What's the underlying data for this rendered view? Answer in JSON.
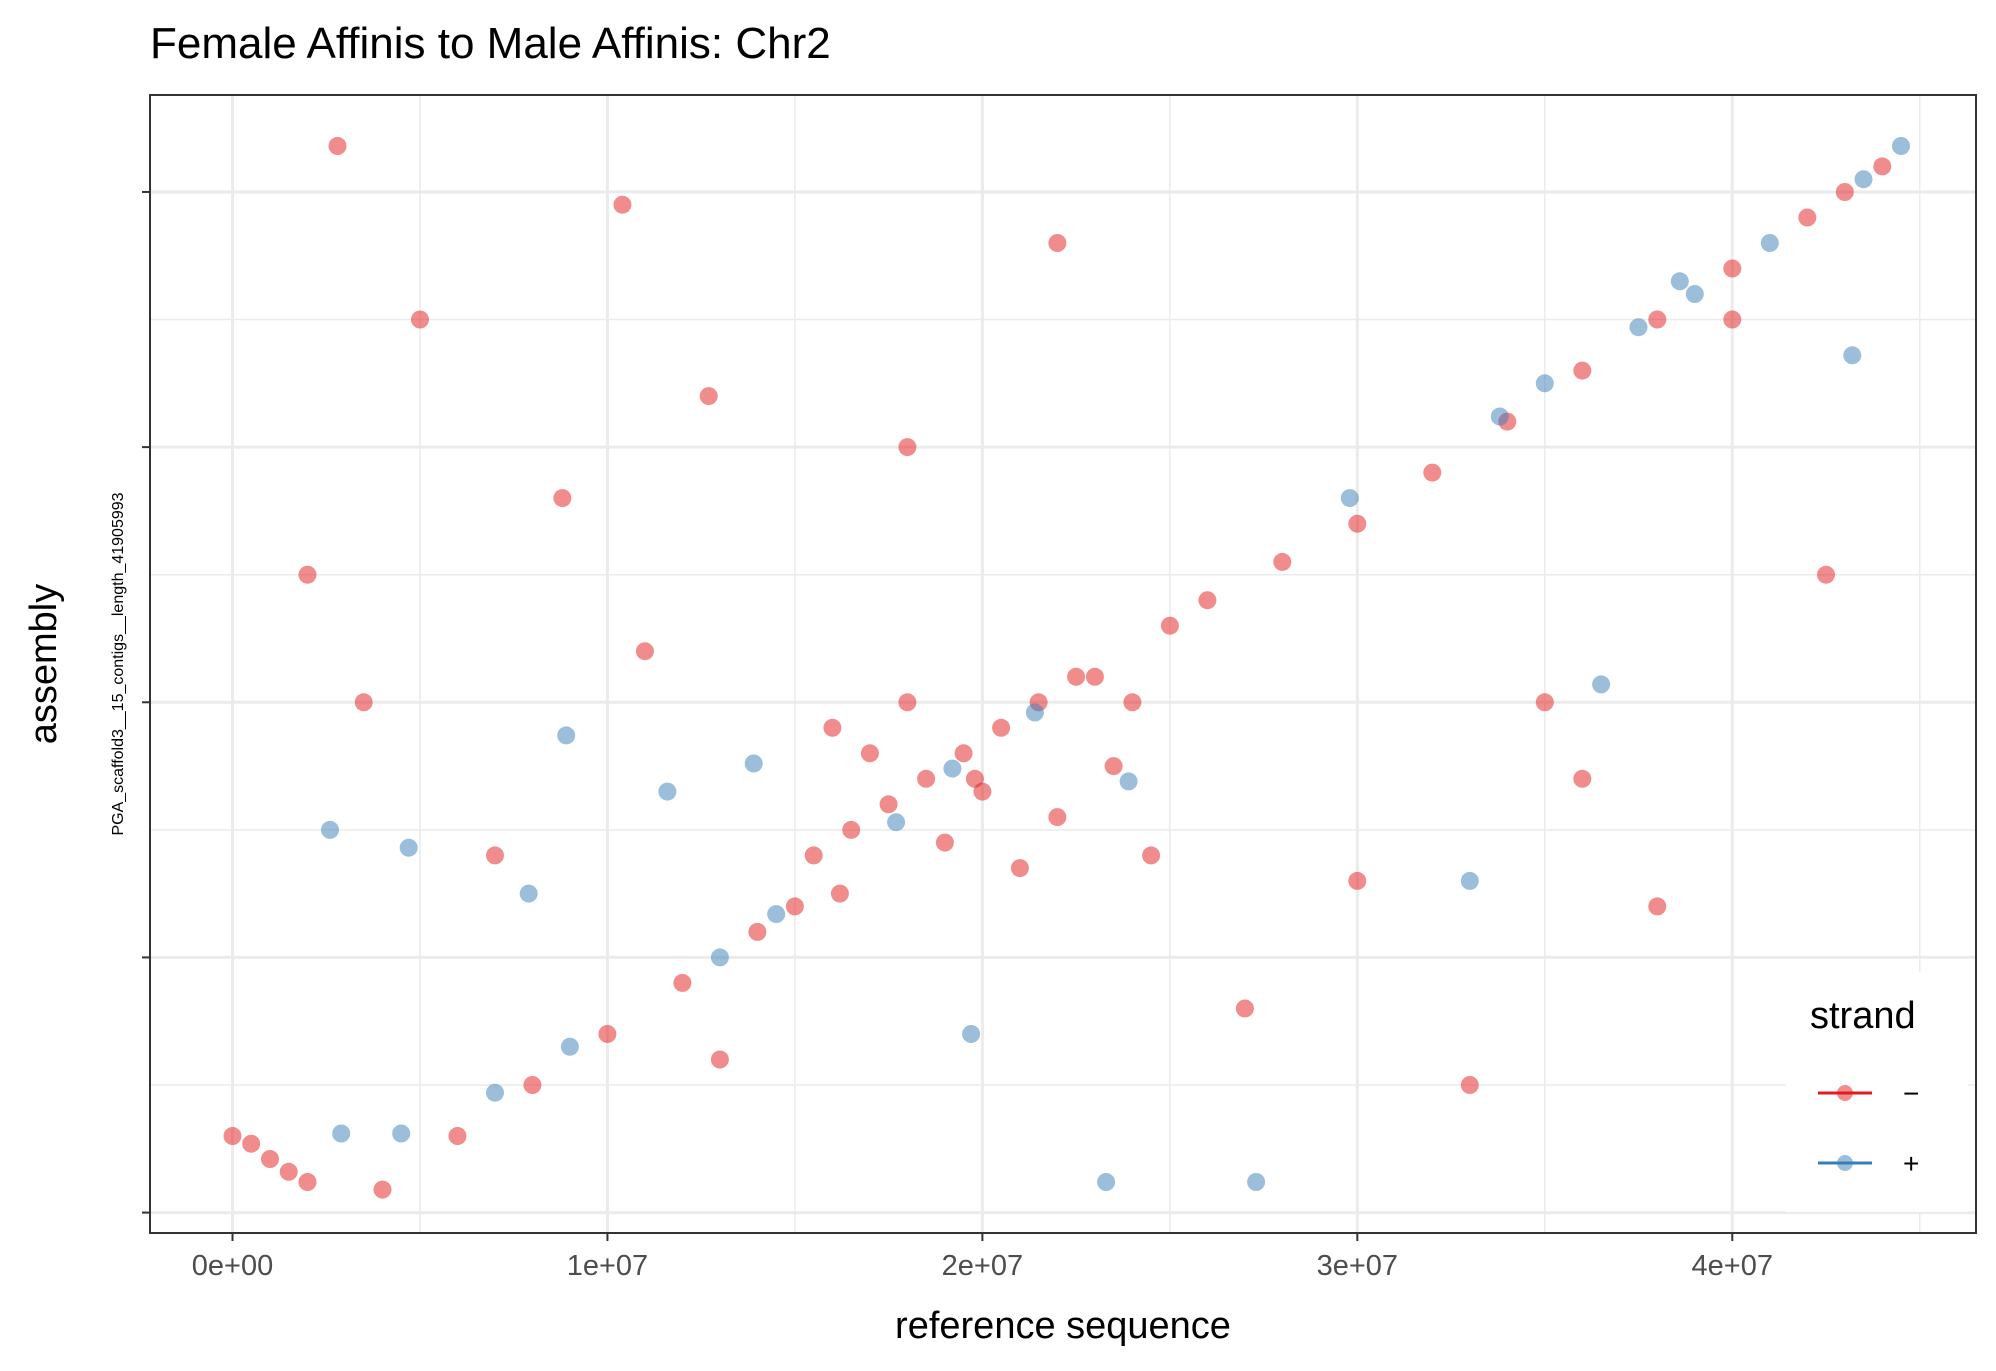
{
  "chart_data": {
    "type": "scatter",
    "title": "Female Affinis to Male Affinis: Chr2",
    "xlabel": "reference sequence",
    "ylabel": "assembly",
    "y_sublabel": "PGA_scaffold3__15_contigs__length_41905993",
    "xlim": [
      -2200000,
      46500000
    ],
    "ylim": [
      -800000,
      43800000
    ],
    "x_ticks": [
      0,
      10000000,
      20000000,
      30000000,
      40000000
    ],
    "x_tick_labels": [
      "0e+00",
      "1e+07",
      "2e+07",
      "3e+07",
      "4e+07"
    ],
    "y_ticks": [
      0,
      10000000,
      20000000,
      30000000,
      40000000
    ],
    "y_tick_labels": [
      "",
      "",
      "",
      "",
      ""
    ],
    "grid": true,
    "legend": {
      "title": "strand",
      "position": "right-bottom",
      "entries": [
        {
          "label": "−",
          "color": "#e41a1c"
        },
        {
          "label": "+",
          "color": "#377eb8"
        }
      ]
    },
    "series": [
      {
        "name": "−",
        "color": "#e41a1c",
        "points": [
          [
            0,
            3000000
          ],
          [
            500000,
            2700000
          ],
          [
            1000000,
            2100000
          ],
          [
            1500000,
            1600000
          ],
          [
            2000000,
            1200000
          ],
          [
            4000000,
            900000
          ],
          [
            6000000,
            3000000
          ],
          [
            8000000,
            5000000
          ],
          [
            10000000,
            7000000
          ],
          [
            12000000,
            9000000
          ],
          [
            14000000,
            11000000
          ],
          [
            15000000,
            12000000
          ],
          [
            23000000,
            21000000
          ],
          [
            25000000,
            23000000
          ],
          [
            26000000,
            24000000
          ],
          [
            28000000,
            25500000
          ],
          [
            30000000,
            27000000
          ],
          [
            32000000,
            29000000
          ],
          [
            34000000,
            31000000
          ],
          [
            36000000,
            33000000
          ],
          [
            38000000,
            35000000
          ],
          [
            40000000,
            37000000
          ],
          [
            42000000,
            39000000
          ],
          [
            43000000,
            40000000
          ],
          [
            44000000,
            41000000
          ],
          [
            15500000,
            14000000
          ],
          [
            16500000,
            15000000
          ],
          [
            17500000,
            16000000
          ],
          [
            18500000,
            17000000
          ],
          [
            19500000,
            18000000
          ],
          [
            20500000,
            19000000
          ],
          [
            21500000,
            20000000
          ],
          [
            22500000,
            21000000
          ],
          [
            16000000,
            19000000
          ],
          [
            17000000,
            18000000
          ],
          [
            18000000,
            20000000
          ],
          [
            19000000,
            14500000
          ],
          [
            20000000,
            16500000
          ],
          [
            21000000,
            13500000
          ],
          [
            22000000,
            15500000
          ],
          [
            23500000,
            17500000
          ],
          [
            24500000,
            14000000
          ],
          [
            16200000,
            12500000
          ],
          [
            24000000,
            20000000
          ],
          [
            19800000,
            17000000
          ],
          [
            2800000,
            41800000
          ],
          [
            10400000,
            39500000
          ],
          [
            12700000,
            32000000
          ],
          [
            8800000,
            28000000
          ],
          [
            35000000,
            20000000
          ],
          [
            38000000,
            12000000
          ],
          [
            42500000,
            25000000
          ],
          [
            2000000,
            25000000
          ],
          [
            30000000,
            13000000
          ],
          [
            11000000,
            22000000
          ],
          [
            27000000,
            8000000
          ],
          [
            33000000,
            5000000
          ],
          [
            5000000,
            35000000
          ],
          [
            40000000,
            35000000
          ],
          [
            22000000,
            38000000
          ],
          [
            18000000,
            30000000
          ],
          [
            7000000,
            14000000
          ],
          [
            13000000,
            6000000
          ],
          [
            36000000,
            17000000
          ],
          [
            3500000,
            20000000
          ]
        ]
      },
      {
        "name": "+",
        "color": "#377eb8",
        "points": [
          [
            2900000,
            3100000
          ],
          [
            4500000,
            3100000
          ],
          [
            7000000,
            4700000
          ],
          [
            9000000,
            6500000
          ],
          [
            13000000,
            10000000
          ],
          [
            14500000,
            11700000
          ],
          [
            29800000,
            28000000
          ],
          [
            33800000,
            31200000
          ],
          [
            35000000,
            32500000
          ],
          [
            37500000,
            34700000
          ],
          [
            39000000,
            36000000
          ],
          [
            41000000,
            38000000
          ],
          [
            43500000,
            40500000
          ],
          [
            44500000,
            41800000
          ],
          [
            2600000,
            15000000
          ],
          [
            4700000,
            14300000
          ],
          [
            7900000,
            12500000
          ],
          [
            8900000,
            18700000
          ],
          [
            11600000,
            16500000
          ],
          [
            13900000,
            17600000
          ],
          [
            19700000,
            7000000
          ],
          [
            23300000,
            1200000
          ],
          [
            27300000,
            1200000
          ],
          [
            33000000,
            13000000
          ],
          [
            36500000,
            20700000
          ],
          [
            38600000,
            36500000
          ],
          [
            43200000,
            33600000
          ],
          [
            19200000,
            17400000
          ],
          [
            21400000,
            19600000
          ],
          [
            17700000,
            15300000
          ],
          [
            23900000,
            16900000
          ]
        ]
      }
    ]
  }
}
